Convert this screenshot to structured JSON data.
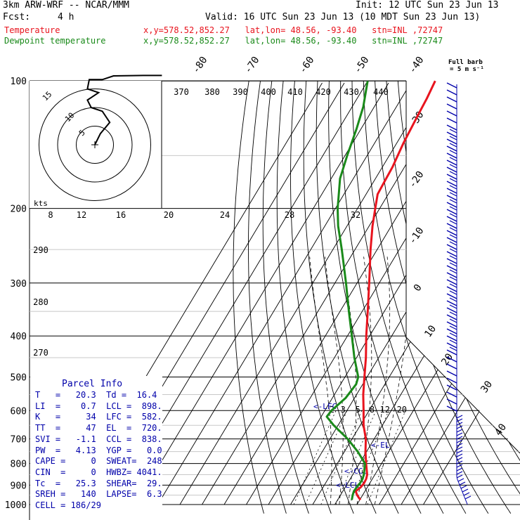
{
  "header": {
    "model": "3km ARW-WRF -- NCAR/MMM",
    "init": "Init: 12 UTC Sun 23 Jun 13",
    "fcst_label": "Fcst:",
    "fcst_value": "4 h",
    "valid": "Valid: 16 UTC Sun 23 Jun 13 (10 MDT Sun 23 Jun 13)",
    "temp_label": "Temperature",
    "temp_info": "x,y=578.52,852.27   lat,lon= 48.56, -93.40   stn=INL ,72747",
    "dew_label": "Dewpoint temperature",
    "dew_info": "x,y=578.52,852.27   lat,lon= 48.56, -93.40   stn=INL ,72747",
    "full_barb_line1": "Full barb",
    "full_barb_line2": "= 5 m s⁻¹"
  },
  "colors": {
    "temperature": "#e8141e",
    "dewpoint": "#1a8a1a",
    "barbs": "#0000aa",
    "parcel": "#0000aa",
    "grid": "#000000"
  },
  "parcel_info": {
    "title": "Parcel Info",
    "rows": [
      "T   =   20.3  Td =  16.4",
      "LI  =    0.7  LCL =  898.",
      "K   =     34  LFC =  582.",
      "TT  =     47  EL  =  720.",
      "SVI =   -1.1  CCL =  838.",
      "PW  =   4.13  YGP =   0.0",
      "CAPE =     0  SWEAT=  248",
      "CIN  =     0  HWBZ= 4041.",
      "Tc  =   25.3  SHEAR=  29.",
      "SREH =   140  LAPSE=  6.3",
      "CELL = 186/29"
    ]
  },
  "chart_data": {
    "type": "line",
    "subtype": "skew-T log-p sounding",
    "y_axis": {
      "label": "",
      "scale": "log",
      "ylim": [
        1000,
        100
      ],
      "ticks": [
        "100",
        "200",
        "300",
        "400",
        "500",
        "600",
        "700",
        "800",
        "900",
        "1000"
      ]
    },
    "isotherm_labels_top": [
      "-80",
      "-70",
      "-60",
      "-50",
      "-40"
    ],
    "isotherm_labels_right": [
      "-30",
      "-20",
      "-10",
      "0",
      "10",
      "20",
      "30",
      "40"
    ],
    "theta_labels_top": [
      "370",
      "380",
      "390",
      "400",
      "410",
      "420",
      "430",
      "440"
    ],
    "theta_labels_left": [
      "290",
      "280",
      "270"
    ],
    "mixing_ratio_labels": [
      "2",
      "3",
      "5",
      "8",
      "12",
      "20"
    ],
    "hodograph": {
      "unit_label": "kts",
      "ring_labels": [
        "5",
        "10",
        "15"
      ],
      "speed_labels": [
        "8",
        "12",
        "16",
        "20",
        "24",
        "28",
        "32"
      ]
    },
    "level_labels": [
      "<-LFC",
      "<-EL",
      "<-CCL",
      "<-LCL"
    ],
    "series": [
      {
        "name": "Temperature",
        "x_unit": "°C",
        "values": [
          [
            975,
            20.3
          ],
          [
            950,
            17.5
          ],
          [
            930,
            15.8
          ],
          [
            910,
            17.0
          ],
          [
            890,
            17.4
          ],
          [
            870,
            17.2
          ],
          [
            850,
            16.5
          ],
          [
            800,
            13.0
          ],
          [
            750,
            9.5
          ],
          [
            700,
            6.2
          ],
          [
            650,
            1.5
          ],
          [
            600,
            -2.5
          ],
          [
            550,
            -7.0
          ],
          [
            500,
            -11.2
          ],
          [
            450,
            -15.8
          ],
          [
            400,
            -21.5
          ],
          [
            350,
            -27.5
          ],
          [
            300,
            -34.5
          ],
          [
            250,
            -43.0
          ],
          [
            220,
            -48.5
          ],
          [
            200,
            -52.0
          ],
          [
            185,
            -54.8
          ],
          [
            170,
            -55.2
          ],
          [
            160,
            -55.4
          ],
          [
            140,
            -57.0
          ],
          [
            120,
            -58.0
          ],
          [
            110,
            -58.5
          ],
          [
            100,
            -59.5
          ]
        ]
      },
      {
        "name": "Dewpoint temperature",
        "x_unit": "°C",
        "values": [
          [
            975,
            16.4
          ],
          [
            950,
            15.5
          ],
          [
            930,
            15.0
          ],
          [
            910,
            15.2
          ],
          [
            890,
            15.6
          ],
          [
            870,
            15.6
          ],
          [
            850,
            15.0
          ],
          [
            800,
            12.5
          ],
          [
            750,
            6.0
          ],
          [
            700,
            -2.0
          ],
          [
            650,
            -12.0
          ],
          [
            620,
            -17.5
          ],
          [
            600,
            -17.0
          ],
          [
            560,
            -14.0
          ],
          [
            520,
            -13.0
          ],
          [
            500,
            -14.0
          ],
          [
            450,
            -21.0
          ],
          [
            400,
            -28.0
          ],
          [
            350,
            -36.0
          ],
          [
            300,
            -45.0
          ],
          [
            250,
            -56.0
          ],
          [
            220,
            -64.0
          ],
          [
            200,
            -69.0
          ],
          [
            170,
            -76.0
          ],
          [
            150,
            -79.0
          ],
          [
            130,
            -82.0
          ],
          [
            115,
            -85.0
          ],
          [
            100,
            -90.0
          ]
        ]
      }
    ],
    "hodograph_path_kts": [
      [
        0,
        0
      ],
      [
        1.5,
        3
      ],
      [
        4,
        6
      ],
      [
        2,
        9
      ],
      [
        -1,
        10
      ],
      [
        -2,
        12
      ],
      [
        1,
        14
      ],
      [
        -2,
        15
      ],
      [
        -1.5,
        17.5
      ],
      [
        2,
        17.5
      ],
      [
        5,
        18.5
      ],
      [
        13,
        18.6
      ],
      [
        18,
        18.6
      ]
    ]
  }
}
